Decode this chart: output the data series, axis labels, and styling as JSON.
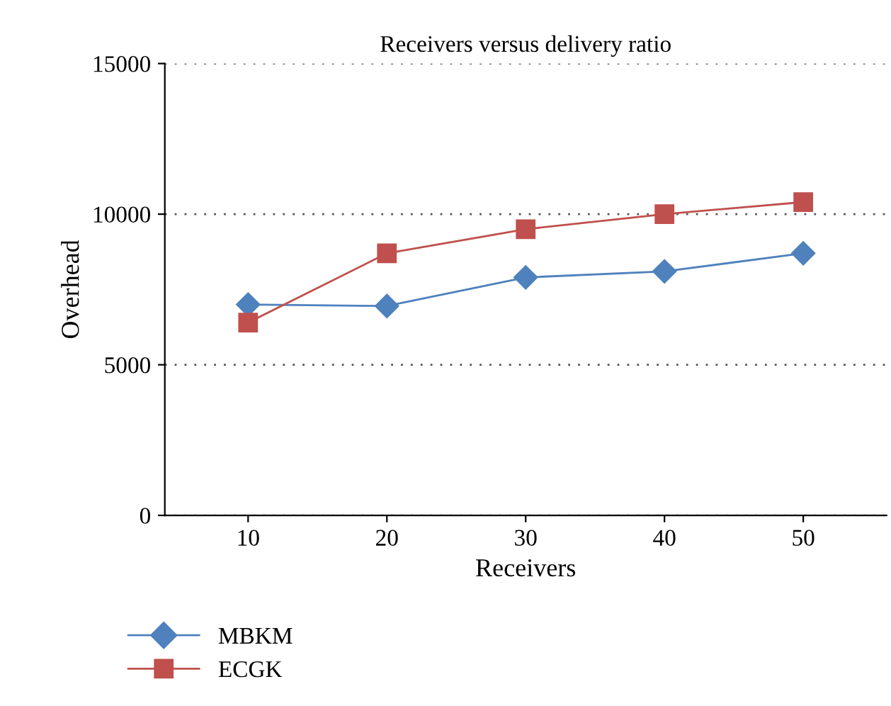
{
  "chart_data": {
    "type": "line",
    "title": "Receivers versus delivery ratio",
    "xlabel": "Receivers",
    "ylabel": "Overhead",
    "categories": [
      "10",
      "20",
      "30",
      "40",
      "50"
    ],
    "series": [
      {
        "name": "MBKM",
        "color": "#4f81bd",
        "marker": "diamond",
        "values": [
          7000,
          6950,
          7900,
          8100,
          8700
        ]
      },
      {
        "name": "ECGK",
        "color": "#c0504d",
        "marker": "square",
        "values": [
          6400,
          8700,
          9500,
          10000,
          10400
        ]
      }
    ],
    "ylim": [
      0,
      15000
    ],
    "yticks": [
      0,
      5000,
      10000,
      15000
    ],
    "grid": "y",
    "legend": "bottom left",
    "line_style": "solid"
  }
}
